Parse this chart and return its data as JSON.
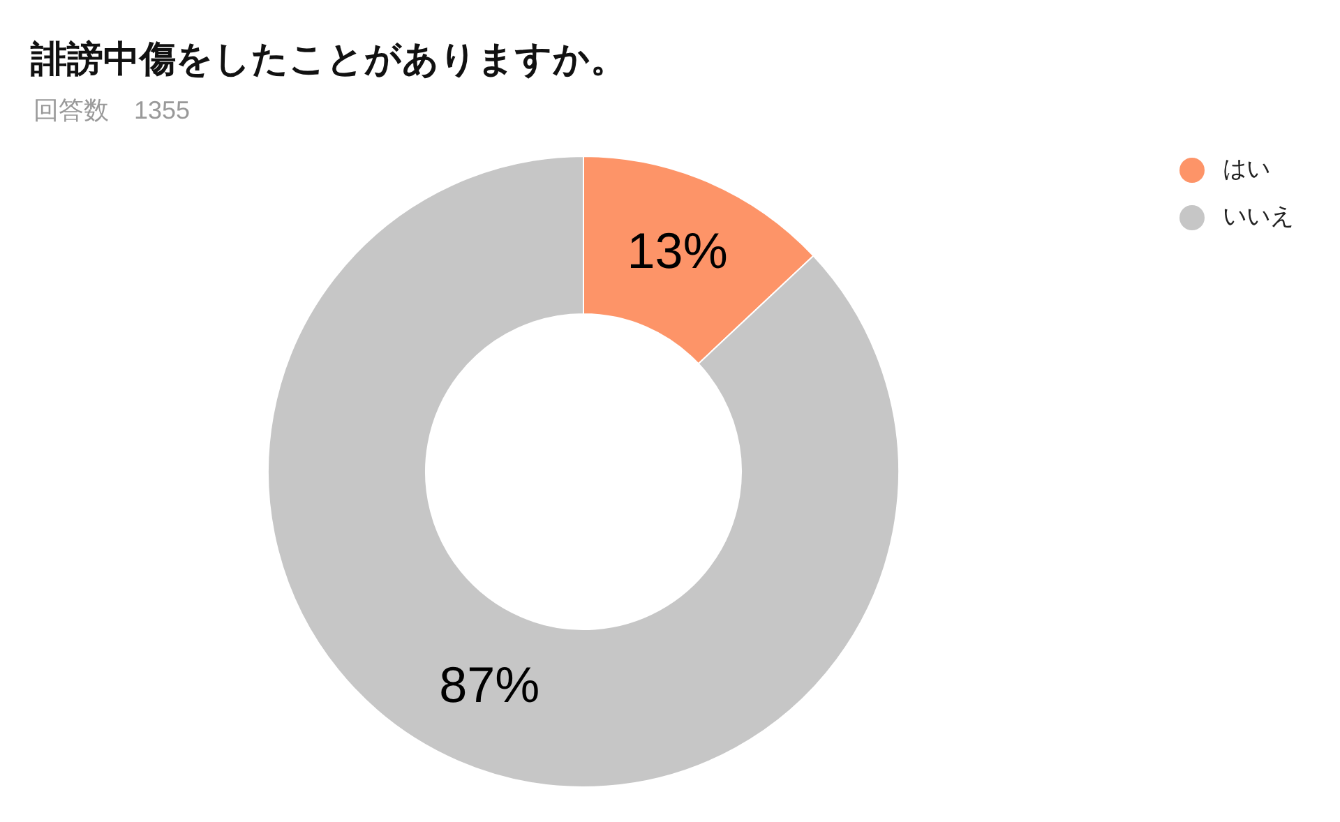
{
  "chart_data": {
    "type": "donut",
    "title": "誹謗中傷をしたことがありますか。",
    "subtitle": "回答数　1355",
    "categories": [
      "はい",
      "いいえ"
    ],
    "values": [
      13,
      87
    ],
    "colors": [
      "#fd9468",
      "#c6c6c6"
    ],
    "value_labels": [
      "13%",
      "87%"
    ],
    "legend": "top right"
  }
}
